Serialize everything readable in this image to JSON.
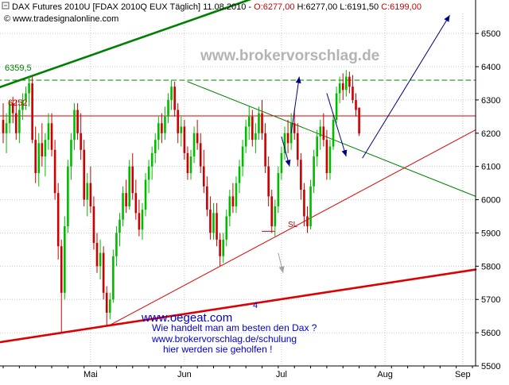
{
  "header": {
    "instrument": "DAX Futures 2010U [FDAX 2010Q EUX  Täglich] 11.08.2010 - ",
    "open": "O:6277,00",
    "high": "H:6277,00",
    "low": "L:6191,50",
    "close": "C:6199,00",
    "source": "www.tradesignalonline.com"
  },
  "watermark": "www.brokervorschlag.de",
  "annotations": {
    "level_label": "6359,5",
    "level_label2": "6252",
    "sl_label": "SL",
    "number_label": "4",
    "promo_url": "www.oegeat.com",
    "promo_line1": "Wie handelt man am besten den Dax ?",
    "promo_line2": "www.brokervorschlag.de/schulung",
    "promo_line3": "hier werden sie geholfen !"
  },
  "colors": {
    "up_candle": "#00bb00",
    "down_candle": "#cc0000",
    "green_line": "#008000",
    "red_line": "#dd0000",
    "arrow_blue": "#000080"
  },
  "chart_data": {
    "type": "candlestick",
    "title": "DAX Futures 2010U [FDAX 2010Q EUX  Täglich] 11.08.2010",
    "ylim": [
      5500,
      6560
    ],
    "y_ticks": [
      {
        "value": 6500,
        "label": "6500"
      },
      {
        "value": 6400,
        "label": "6400"
      },
      {
        "value": 6300,
        "label": "6300"
      },
      {
        "value": 6200,
        "label": "6200"
      },
      {
        "value": 6100,
        "label": "6100"
      },
      {
        "value": 6000,
        "label": "6000"
      },
      {
        "value": 5900,
        "label": "5900"
      },
      {
        "value": 5800,
        "label": "5800"
      },
      {
        "value": 5700,
        "label": "5700"
      },
      {
        "value": 5600,
        "label": "5600"
      },
      {
        "value": 5500,
        "label": "5500"
      }
    ],
    "x_range": [
      0,
      145
    ],
    "x_ticks": [
      {
        "index": 27,
        "label": "Mai"
      },
      {
        "index": 56,
        "label": "Jun"
      },
      {
        "index": 86,
        "label": "Jul"
      },
      {
        "index": 118,
        "label": "Aug"
      },
      {
        "index": 142,
        "label": "Sep"
      }
    ],
    "candles": [
      {
        "o": 6240,
        "h": 6290,
        "l": 6170,
        "c": 6200
      },
      {
        "o": 6200,
        "h": 6260,
        "l": 6140,
        "c": 6230
      },
      {
        "o": 6230,
        "h": 6300,
        "l": 6200,
        "c": 6290
      },
      {
        "o": 6290,
        "h": 6310,
        "l": 6230,
        "c": 6260
      },
      {
        "o": 6260,
        "h": 6300,
        "l": 6180,
        "c": 6200
      },
      {
        "o": 6200,
        "h": 6290,
        "l": 6170,
        "c": 6270
      },
      {
        "o": 6270,
        "h": 6320,
        "l": 6240,
        "c": 6300
      },
      {
        "o": 6300,
        "h": 6340,
        "l": 6270,
        "c": 6320
      },
      {
        "o": 6320,
        "h": 6370,
        "l": 6280,
        "c": 6350
      },
      {
        "o": 6350,
        "h": 6370,
        "l": 6170,
        "c": 6180
      },
      {
        "o": 6180,
        "h": 6220,
        "l": 6050,
        "c": 6080
      },
      {
        "o": 6080,
        "h": 6200,
        "l": 6040,
        "c": 6170
      },
      {
        "o": 6170,
        "h": 6230,
        "l": 6100,
        "c": 6130
      },
      {
        "o": 6130,
        "h": 6200,
        "l": 6070,
        "c": 6180
      },
      {
        "o": 6180,
        "h": 6260,
        "l": 6150,
        "c": 6230
      },
      {
        "o": 6230,
        "h": 6260,
        "l": 6130,
        "c": 6150
      },
      {
        "o": 6150,
        "h": 6180,
        "l": 6000,
        "c": 6020
      },
      {
        "o": 6020,
        "h": 6050,
        "l": 5820,
        "c": 5860
      },
      {
        "o": 5860,
        "h": 5880,
        "l": 5600,
        "c": 5720
      },
      {
        "o": 5720,
        "h": 5950,
        "l": 5700,
        "c": 5920
      },
      {
        "o": 5920,
        "h": 6120,
        "l": 5900,
        "c": 6100
      },
      {
        "o": 6100,
        "h": 6200,
        "l": 6060,
        "c": 6180
      },
      {
        "o": 6180,
        "h": 6290,
        "l": 6150,
        "c": 6270
      },
      {
        "o": 6270,
        "h": 6290,
        "l": 6180,
        "c": 6200
      },
      {
        "o": 6200,
        "h": 6260,
        "l": 6120,
        "c": 6150
      },
      {
        "o": 6150,
        "h": 6180,
        "l": 5980,
        "c": 6000
      },
      {
        "o": 6000,
        "h": 6080,
        "l": 5950,
        "c": 6050
      },
      {
        "o": 6050,
        "h": 6100,
        "l": 5960,
        "c": 5980
      },
      {
        "o": 5980,
        "h": 6010,
        "l": 5850,
        "c": 5870
      },
      {
        "o": 5870,
        "h": 5900,
        "l": 5780,
        "c": 5800
      },
      {
        "o": 5800,
        "h": 5880,
        "l": 5760,
        "c": 5840
      },
      {
        "o": 5840,
        "h": 5860,
        "l": 5700,
        "c": 5720
      },
      {
        "o": 5720,
        "h": 5740,
        "l": 5620,
        "c": 5660
      },
      {
        "o": 5660,
        "h": 5720,
        "l": 5640,
        "c": 5700
      },
      {
        "o": 5700,
        "h": 5850,
        "l": 5690,
        "c": 5830
      },
      {
        "o": 5830,
        "h": 5920,
        "l": 5800,
        "c": 5900
      },
      {
        "o": 5900,
        "h": 5960,
        "l": 5860,
        "c": 5940
      },
      {
        "o": 5940,
        "h": 6040,
        "l": 5920,
        "c": 6020
      },
      {
        "o": 6020,
        "h": 6060,
        "l": 5960,
        "c": 5980
      },
      {
        "o": 5980,
        "h": 6120,
        "l": 5970,
        "c": 6100
      },
      {
        "o": 6100,
        "h": 6140,
        "l": 6000,
        "c": 6020
      },
      {
        "o": 6020,
        "h": 6060,
        "l": 5940,
        "c": 5960
      },
      {
        "o": 5960,
        "h": 6000,
        "l": 5890,
        "c": 5910
      },
      {
        "o": 5910,
        "h": 5990,
        "l": 5880,
        "c": 5970
      },
      {
        "o": 5970,
        "h": 6080,
        "l": 5950,
        "c": 6060
      },
      {
        "o": 6060,
        "h": 6120,
        "l": 6020,
        "c": 6100
      },
      {
        "o": 6100,
        "h": 6160,
        "l": 6060,
        "c": 6140
      },
      {
        "o": 6140,
        "h": 6200,
        "l": 6110,
        "c": 6180
      },
      {
        "o": 6180,
        "h": 6250,
        "l": 6150,
        "c": 6230
      },
      {
        "o": 6230,
        "h": 6260,
        "l": 6170,
        "c": 6200
      },
      {
        "o": 6200,
        "h": 6280,
        "l": 6180,
        "c": 6250
      },
      {
        "o": 6250,
        "h": 6320,
        "l": 6230,
        "c": 6300
      },
      {
        "o": 6300,
        "h": 6360,
        "l": 6270,
        "c": 6340
      },
      {
        "o": 6340,
        "h": 6355,
        "l": 6250,
        "c": 6270
      },
      {
        "o": 6270,
        "h": 6290,
        "l": 6170,
        "c": 6200
      },
      {
        "o": 6200,
        "h": 6250,
        "l": 6160,
        "c": 6220
      },
      {
        "o": 6220,
        "h": 6240,
        "l": 6120,
        "c": 6140
      },
      {
        "o": 6140,
        "h": 6160,
        "l": 6060,
        "c": 6080
      },
      {
        "o": 6080,
        "h": 6150,
        "l": 6060,
        "c": 6130
      },
      {
        "o": 6130,
        "h": 6220,
        "l": 6110,
        "c": 6200
      },
      {
        "o": 6200,
        "h": 6240,
        "l": 6150,
        "c": 6170
      },
      {
        "o": 6170,
        "h": 6200,
        "l": 6080,
        "c": 6100
      },
      {
        "o": 6100,
        "h": 6150,
        "l": 6020,
        "c": 6040
      },
      {
        "o": 6040,
        "h": 6070,
        "l": 5950,
        "c": 5970
      },
      {
        "o": 5970,
        "h": 6010,
        "l": 5880,
        "c": 5900
      },
      {
        "o": 5900,
        "h": 5990,
        "l": 5880,
        "c": 5960
      },
      {
        "o": 5960,
        "h": 5990,
        "l": 5860,
        "c": 5880
      },
      {
        "o": 5880,
        "h": 5900,
        "l": 5800,
        "c": 5830
      },
      {
        "o": 5830,
        "h": 5900,
        "l": 5810,
        "c": 5880
      },
      {
        "o": 5880,
        "h": 5970,
        "l": 5860,
        "c": 5950
      },
      {
        "o": 5950,
        "h": 6030,
        "l": 5920,
        "c": 6010
      },
      {
        "o": 6010,
        "h": 6050,
        "l": 5960,
        "c": 5980
      },
      {
        "o": 5980,
        "h": 6070,
        "l": 5960,
        "c": 6050
      },
      {
        "o": 6050,
        "h": 6120,
        "l": 6020,
        "c": 6100
      },
      {
        "o": 6100,
        "h": 6180,
        "l": 6070,
        "c": 6160
      },
      {
        "o": 6160,
        "h": 6240,
        "l": 6140,
        "c": 6220
      },
      {
        "o": 6220,
        "h": 6280,
        "l": 6180,
        "c": 6250
      },
      {
        "o": 6250,
        "h": 6270,
        "l": 6160,
        "c": 6180
      },
      {
        "o": 6180,
        "h": 6230,
        "l": 6140,
        "c": 6200
      },
      {
        "o": 6200,
        "h": 6280,
        "l": 6180,
        "c": 6260
      },
      {
        "o": 6260,
        "h": 6300,
        "l": 6180,
        "c": 6200
      },
      {
        "o": 6200,
        "h": 6230,
        "l": 6080,
        "c": 6100
      },
      {
        "o": 6100,
        "h": 6130,
        "l": 5980,
        "c": 6010
      },
      {
        "o": 6010,
        "h": 6030,
        "l": 5900,
        "c": 5920
      },
      {
        "o": 5920,
        "h": 6000,
        "l": 5890,
        "c": 5980
      },
      {
        "o": 5980,
        "h": 6100,
        "l": 5960,
        "c": 6080
      },
      {
        "o": 6080,
        "h": 6160,
        "l": 6060,
        "c": 6140
      },
      {
        "o": 6140,
        "h": 6220,
        "l": 6120,
        "c": 6200
      },
      {
        "o": 6200,
        "h": 6240,
        "l": 6140,
        "c": 6170
      },
      {
        "o": 6170,
        "h": 6260,
        "l": 6150,
        "c": 6230
      },
      {
        "o": 6230,
        "h": 6270,
        "l": 6180,
        "c": 6200
      },
      {
        "o": 6200,
        "h": 6230,
        "l": 6100,
        "c": 6120
      },
      {
        "o": 6120,
        "h": 6140,
        "l": 6000,
        "c": 6030
      },
      {
        "o": 6030,
        "h": 6050,
        "l": 5920,
        "c": 5950
      },
      {
        "o": 5950,
        "h": 5980,
        "l": 5900,
        "c": 5920
      },
      {
        "o": 5920,
        "h": 6060,
        "l": 5910,
        "c": 6040
      },
      {
        "o": 6040,
        "h": 6150,
        "l": 6020,
        "c": 6130
      },
      {
        "o": 6130,
        "h": 6210,
        "l": 6100,
        "c": 6190
      },
      {
        "o": 6190,
        "h": 6240,
        "l": 6150,
        "c": 6220
      },
      {
        "o": 6220,
        "h": 6260,
        "l": 6160,
        "c": 6180
      },
      {
        "o": 6180,
        "h": 6210,
        "l": 6060,
        "c": 6080
      },
      {
        "o": 6080,
        "h": 6180,
        "l": 6060,
        "c": 6160
      },
      {
        "o": 6160,
        "h": 6260,
        "l": 6150,
        "c": 6240
      },
      {
        "o": 6240,
        "h": 6340,
        "l": 6230,
        "c": 6320
      },
      {
        "o": 6320,
        "h": 6370,
        "l": 6290,
        "c": 6350
      },
      {
        "o": 6350,
        "h": 6380,
        "l": 6300,
        "c": 6330
      },
      {
        "o": 6330,
        "h": 6390,
        "l": 6310,
        "c": 6370
      },
      {
        "o": 6370,
        "h": 6385,
        "l": 6320,
        "c": 6340
      },
      {
        "o": 6340,
        "h": 6375,
        "l": 6290,
        "c": 6300
      },
      {
        "o": 6300,
        "h": 6320,
        "l": 6250,
        "c": 6270
      },
      {
        "o": 6277,
        "h": 6277,
        "l": 6191.5,
        "c": 6199
      }
    ],
    "lines": [
      {
        "name": "green-upper-trendline",
        "points": [
          [
            -2,
            6335
          ],
          [
            78,
            6608
          ]
        ],
        "color": "#008000",
        "width": 2.6
      },
      {
        "name": "green-down-trendline",
        "points": [
          [
            57,
            6355
          ],
          [
            146,
            6010
          ]
        ],
        "color": "#008000",
        "width": 1
      },
      {
        "name": "red-lower-trendline",
        "points": [
          [
            -2,
            5570
          ],
          [
            146,
            5790
          ]
        ],
        "color": "#dd0000",
        "width": 2.6
      },
      {
        "name": "red-up-trendline",
        "points": [
          [
            33,
            5623
          ],
          [
            146,
            6210
          ]
        ],
        "color": "#dd0000",
        "width": 1
      },
      {
        "name": "resistance-dashed-line",
        "points": [
          [
            -2,
            6359.5
          ],
          [
            146,
            6359.5
          ]
        ],
        "color": "#008000",
        "width": 1,
        "dash": true
      },
      {
        "name": "support-line",
        "points": [
          [
            -2,
            6252
          ],
          [
            146,
            6252
          ]
        ],
        "color": "#dd0000",
        "width": 1
      },
      {
        "name": "sl-mark-line",
        "points": [
          [
            80,
            5905
          ],
          [
            84,
            5905
          ]
        ],
        "color": "#dd0000",
        "width": 1
      }
    ],
    "arrows": [
      {
        "name": "arrow-down-1",
        "from": [
          86,
          6190
        ],
        "to": [
          88.5,
          6100
        ]
      },
      {
        "name": "arrow-up-1",
        "from": [
          89,
          6200
        ],
        "to": [
          91.5,
          6370
        ]
      },
      {
        "name": "arrow-down-2",
        "from": [
          100,
          6320
        ],
        "to": [
          106,
          6130
        ]
      },
      {
        "name": "arrow-projection-up",
        "from": [
          111,
          6125
        ],
        "to": [
          138,
          6555
        ]
      },
      {
        "name": "arrow-grey",
        "from": [
          85,
          5840
        ],
        "to": [
          86.5,
          5780
        ]
      }
    ]
  }
}
